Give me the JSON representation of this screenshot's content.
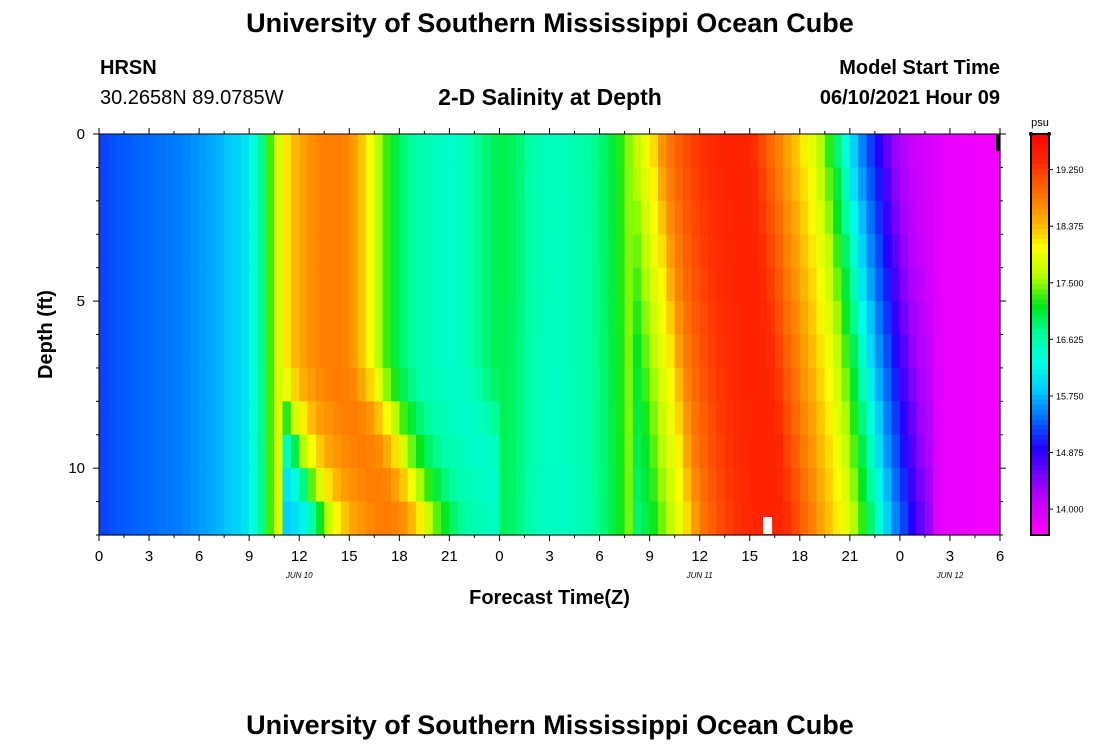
{
  "page": {
    "title": "University of Southern Mississippi Ocean Cube",
    "footer_title": "University of Southern Mississippi Ocean Cube",
    "station": {
      "name": "HRSN",
      "coords": "30.2658N  89.0785W"
    },
    "plot_title": "2-D Salinity at Depth",
    "model_start": {
      "label": "Model Start Time",
      "value": "06/10/2021 Hour 09"
    }
  },
  "chart_data": {
    "type": "heatmap",
    "title": "2-D Salinity at Depth",
    "xlabel": "Forecast Time(Z)",
    "ylabel": "Depth (ft)",
    "x_ticks": [
      "0",
      "3",
      "6",
      "9",
      "12",
      "15",
      "18",
      "21",
      "0",
      "3",
      "6",
      "9",
      "12",
      "15",
      "18",
      "21",
      "0",
      "3",
      "6"
    ],
    "x_hours": [
      0,
      3,
      6,
      9,
      12,
      15,
      18,
      21,
      24,
      27,
      30,
      33,
      36,
      39,
      42,
      45,
      48,
      51,
      54
    ],
    "date_labels": [
      {
        "text": "JUN 10",
        "hour": 12
      },
      {
        "text": "JUN 11",
        "hour": 36
      },
      {
        "text": "JUN 12",
        "hour": 51
      }
    ],
    "y_ticks": [
      "0",
      "5",
      "10"
    ],
    "y_tick_values": [
      0,
      5,
      10
    ],
    "ylim": [
      0,
      12
    ],
    "xlim": [
      0,
      54
    ],
    "colorbar": {
      "unit": "psu",
      "labels": [
        "19.250",
        "18.375",
        "17.500",
        "16.625",
        "15.750",
        "14.875",
        "14.000"
      ],
      "min": 13.6,
      "max": 19.8,
      "colors": [
        "#ff00ff",
        "#cc00ff",
        "#8000ff",
        "#2200ff",
        "#0064ff",
        "#00c8ff",
        "#00ffe6",
        "#00ff9a",
        "#00e61c",
        "#b4ff00",
        "#ffff00",
        "#ffaa00",
        "#ff6a00",
        "#ff2a00",
        "#ff0000"
      ]
    },
    "depths": [
      0,
      1,
      2,
      3,
      4,
      5,
      6,
      7,
      8,
      9,
      10,
      11,
      12
    ],
    "base_profile_hours": [
      0,
      1,
      2,
      3,
      4,
      5,
      6,
      7,
      8,
      9,
      9.5,
      10,
      10.5,
      11,
      11.5,
      12,
      13,
      14,
      15,
      16,
      17,
      18,
      19,
      20,
      21,
      22,
      23,
      24,
      25,
      26,
      27,
      28,
      29,
      30,
      31,
      32,
      33,
      33.5,
      34,
      35,
      36,
      37,
      38,
      39,
      40,
      41,
      42,
      43,
      44,
      44.5,
      45,
      45.5,
      46,
      46.5,
      47,
      47.5,
      48,
      49,
      50,
      51,
      52,
      53,
      54
    ],
    "base_profile_psu": [
      15.2,
      15.3,
      15.35,
      15.4,
      15.45,
      15.5,
      15.6,
      15.7,
      15.85,
      16.1,
      16.5,
      17.0,
      17.6,
      18.0,
      18.3,
      18.5,
      18.7,
      18.8,
      18.7,
      18.2,
      17.4,
      16.9,
      16.6,
      16.5,
      16.4,
      16.5,
      16.8,
      17.0,
      16.9,
      16.6,
      16.5,
      16.5,
      16.6,
      16.8,
      17.1,
      17.6,
      18.1,
      18.5,
      18.8,
      19.1,
      19.3,
      19.4,
      19.45,
      19.4,
      19.0,
      18.6,
      18.2,
      17.7,
      17.0,
      16.5,
      16.0,
      15.6,
      15.3,
      15.0,
      14.7,
      14.4,
      14.2,
      14.0,
      13.9,
      13.8,
      13.75,
      13.7,
      13.7
    ]
  }
}
